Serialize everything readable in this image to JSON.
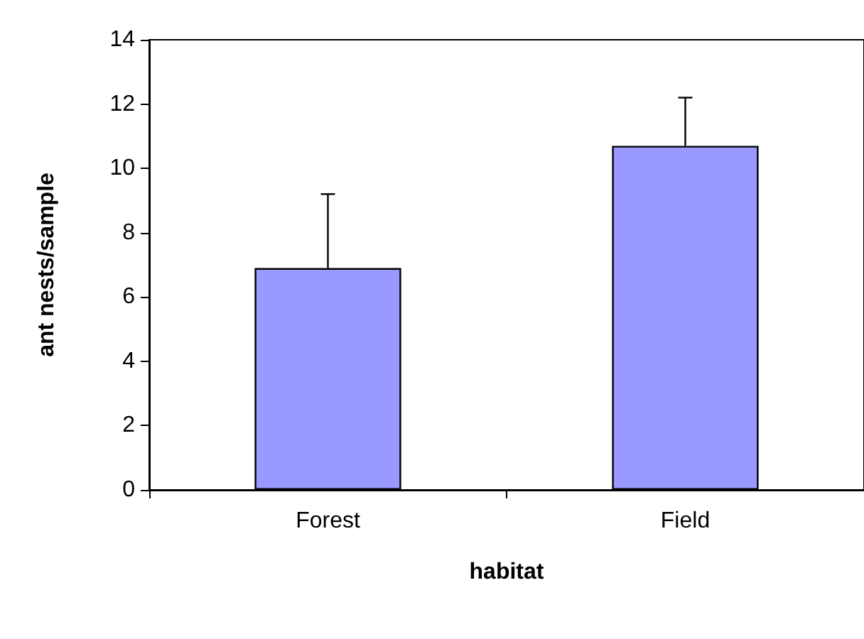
{
  "chart_data": {
    "type": "bar",
    "xlabel": "habitat",
    "ylabel": "ant nests/sample",
    "categories": [
      "Forest",
      "Field"
    ],
    "values": [
      6.9,
      10.7
    ],
    "errors": [
      [
        6.9,
        9.2
      ],
      [
        10.7,
        12.2
      ]
    ],
    "color": "#9999ff",
    "ylim": [
      0,
      14
    ],
    "yticks": [
      0,
      2,
      4,
      6,
      8,
      10,
      12,
      14
    ],
    "grid": false
  }
}
